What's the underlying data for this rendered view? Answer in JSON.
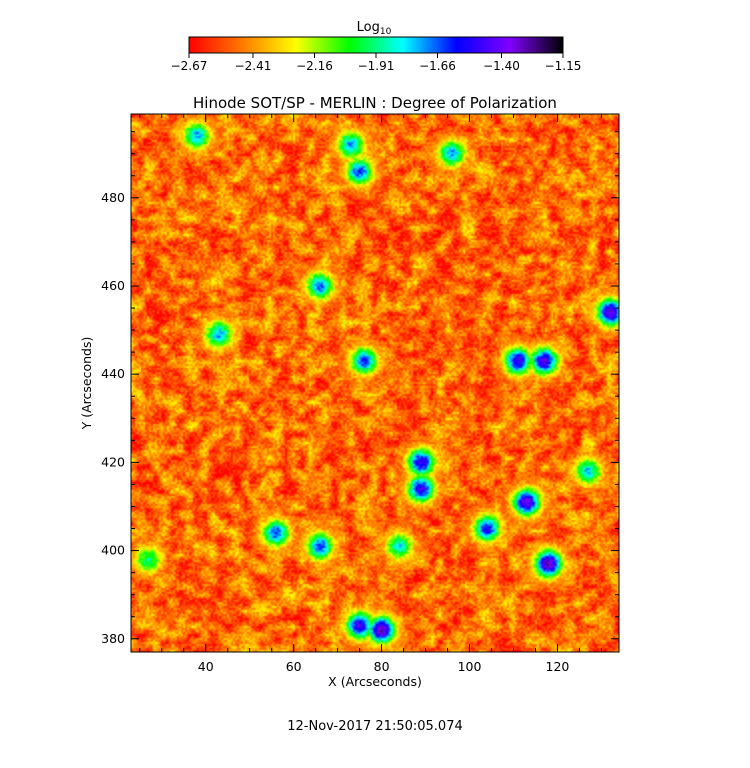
{
  "chart_data": {
    "type": "heatmap",
    "title": "Hinode SOT/SP - MERLIN : Degree of Polarization",
    "xlabel": "X (Arcseconds)",
    "ylabel": "Y (Arcseconds)",
    "xlim": [
      23,
      134
    ],
    "ylim": [
      377,
      499
    ],
    "x_ticks": [
      40,
      60,
      80,
      100,
      120
    ],
    "y_ticks": [
      380,
      400,
      420,
      440,
      460,
      480
    ],
    "x_tick_labels": [
      "40",
      "60",
      "80",
      "100",
      "120"
    ],
    "y_tick_labels": [
      "380",
      "400",
      "420",
      "440",
      "460",
      "480"
    ],
    "colorbar": {
      "title_base": "Log",
      "title_sub": "10",
      "range": [
        -2.67,
        -1.15
      ],
      "tick_labels": [
        "−2.67",
        "−2.41",
        "−2.16",
        "−1.91",
        "−1.66",
        "−1.40",
        "−1.15"
      ],
      "tick_values": [
        -2.67,
        -2.41,
        -2.16,
        -1.91,
        -1.66,
        -1.4,
        -1.15
      ],
      "colormap": [
        "#ff0000",
        "#ff7a00",
        "#ffff00",
        "#00ff00",
        "#00ffff",
        "#0000ff",
        "#8000ff",
        "#000000"
      ]
    },
    "background_value": -2.55,
    "enhanced_regions": [
      {
        "x": 118,
        "y": 397,
        "peak": -1.3
      },
      {
        "x": 113,
        "y": 411,
        "peak": -1.35
      },
      {
        "x": 104,
        "y": 405,
        "peak": -1.55
      },
      {
        "x": 89,
        "y": 414,
        "peak": -1.45
      },
      {
        "x": 89,
        "y": 420,
        "peak": -1.45
      },
      {
        "x": 117,
        "y": 443,
        "peak": -1.4
      },
      {
        "x": 111,
        "y": 443,
        "peak": -1.45
      },
      {
        "x": 132,
        "y": 454,
        "peak": -1.35
      },
      {
        "x": 80,
        "y": 382,
        "peak": -1.3
      },
      {
        "x": 75,
        "y": 383,
        "peak": -1.45
      },
      {
        "x": 66,
        "y": 401,
        "peak": -1.6
      },
      {
        "x": 56,
        "y": 404,
        "peak": -1.6
      },
      {
        "x": 76,
        "y": 443,
        "peak": -1.6
      },
      {
        "x": 75,
        "y": 486,
        "peak": -1.6
      },
      {
        "x": 96,
        "y": 490,
        "peak": -1.7
      },
      {
        "x": 38,
        "y": 494,
        "peak": -1.7
      },
      {
        "x": 43,
        "y": 449,
        "peak": -1.7
      },
      {
        "x": 66,
        "y": 460,
        "peak": -1.65
      },
      {
        "x": 73,
        "y": 492,
        "peak": -1.7
      },
      {
        "x": 127,
        "y": 418,
        "peak": -1.75
      },
      {
        "x": 84,
        "y": 401,
        "peak": -1.8
      },
      {
        "x": 27,
        "y": 398,
        "peak": -1.9
      }
    ]
  },
  "timestamp": "12-Nov-2017 21:50:05.074"
}
